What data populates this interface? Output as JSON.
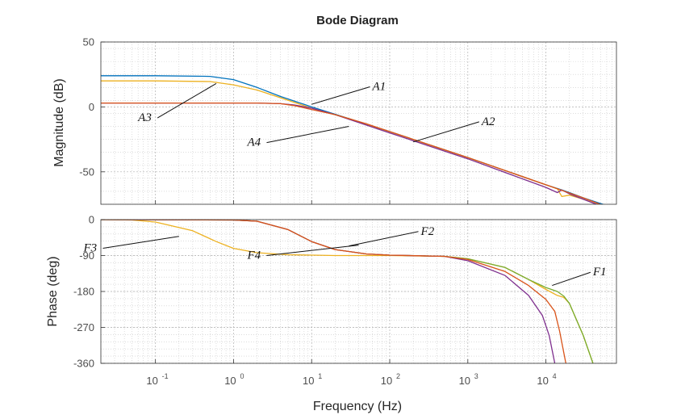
{
  "chart_data": {
    "type": "line",
    "title": "Bode Diagram",
    "xlabel": "Frequency  (Hz)",
    "x_scale": "log",
    "xlim": [
      0.02,
      80000
    ],
    "x_ticks": [
      {
        "base": "10",
        "exp": "-1",
        "value": 0.1
      },
      {
        "base": "10",
        "exp": "0",
        "value": 1
      },
      {
        "base": "10",
        "exp": "1",
        "value": 10
      },
      {
        "base": "10",
        "exp": "2",
        "value": 100
      },
      {
        "base": "10",
        "exp": "3",
        "value": 1000
      },
      {
        "base": "10",
        "exp": "4",
        "value": 10000
      }
    ],
    "grid": true,
    "colors": {
      "blue": "#0072BD",
      "orange": "#D95319",
      "yellow": "#EDB120",
      "purple": "#7E2F8E",
      "green": "#77AC30"
    },
    "panels": [
      {
        "ylabel": "Magnitude (dB)",
        "ylim": [
          -75,
          50
        ],
        "y_ticks": [
          {
            "label": "50",
            "value": 50
          },
          {
            "label": "0",
            "value": 0
          },
          {
            "label": "-50",
            "value": -50
          }
        ],
        "series": [
          {
            "color": "blue",
            "points": [
              [
                0.02,
                24
              ],
              [
                0.1,
                24
              ],
              [
                0.5,
                23.5
              ],
              [
                1,
                21
              ],
              [
                2,
                15
              ],
              [
                4,
                8
              ],
              [
                10,
                0
              ],
              [
                30,
                -9
              ],
              [
                100,
                -19
              ],
              [
                1000,
                -39
              ],
              [
                10000,
                -60
              ],
              [
                16000,
                -64
              ],
              [
                20000,
                -66
              ],
              [
                30000,
                -70
              ],
              [
                60000,
                -76
              ]
            ]
          },
          {
            "color": "yellow",
            "points": [
              [
                0.02,
                20
              ],
              [
                0.1,
                20
              ],
              [
                0.5,
                19.5
              ],
              [
                1,
                17
              ],
              [
                2,
                13
              ],
              [
                4,
                7
              ],
              [
                10,
                -1
              ],
              [
                30,
                -9
              ],
              [
                100,
                -19
              ],
              [
                1000,
                -39
              ],
              [
                10000,
                -60
              ],
              [
                14000,
                -63
              ],
              [
                16000,
                -69
              ],
              [
                20000,
                -68
              ],
              [
                30000,
                -71
              ],
              [
                60000,
                -78
              ]
            ]
          },
          {
            "color": "purple",
            "points": [
              [
                0.02,
                3
              ],
              [
                1,
                3
              ],
              [
                2,
                3
              ],
              [
                4,
                2.5
              ],
              [
                6,
                1.5
              ],
              [
                10,
                -1
              ],
              [
                20,
                -6
              ],
              [
                50,
                -14
              ],
              [
                100,
                -20
              ],
              [
                1000,
                -40
              ],
              [
                10000,
                -62
              ],
              [
                14000,
                -66
              ],
              [
                16000,
                -64
              ],
              [
                20000,
                -67
              ],
              [
                40000,
                -74
              ],
              [
                60000,
                -78
              ]
            ]
          },
          {
            "color": "orange",
            "points": [
              [
                0.02,
                3
              ],
              [
                1,
                3
              ],
              [
                2,
                3
              ],
              [
                4,
                2.5
              ],
              [
                6,
                1
              ],
              [
                10,
                -2
              ],
              [
                20,
                -6
              ],
              [
                50,
                -13
              ],
              [
                100,
                -19
              ],
              [
                1000,
                -39
              ],
              [
                10000,
                -60
              ],
              [
                30000,
                -70
              ],
              [
                60000,
                -77
              ]
            ]
          }
        ],
        "annotations": [
          {
            "label": "A1",
            "text_at": [
              60,
              13
            ],
            "points_to": [
              10,
              2
            ]
          },
          {
            "label": "A2",
            "text_at": [
              1500,
              -14
            ],
            "points_to": [
              200,
              -27
            ]
          },
          {
            "label": "A3",
            "text_at": [
              0.06,
              -11
            ],
            "points_to": [
              0.6,
              18
            ]
          },
          {
            "label": "A4",
            "text_at": [
              1.5,
              -30
            ],
            "points_to": [
              30,
              -15
            ]
          }
        ]
      },
      {
        "ylabel": "Phase (deg)",
        "ylim": [
          -360,
          0
        ],
        "y_ticks": [
          {
            "label": "0",
            "value": 0
          },
          {
            "label": "-90",
            "value": -90
          },
          {
            "label": "-180",
            "value": -180
          },
          {
            "label": "-270",
            "value": -270
          },
          {
            "label": "-360",
            "value": -360
          }
        ],
        "series": [
          {
            "color": "yellow",
            "points": [
              [
                0.02,
                0
              ],
              [
                0.05,
                -1
              ],
              [
                0.1,
                -6
              ],
              [
                0.3,
                -28
              ],
              [
                0.6,
                -55
              ],
              [
                1,
                -72
              ],
              [
                2,
                -83
              ],
              [
                5,
                -88
              ],
              [
                20,
                -90
              ],
              [
                100,
                -90
              ],
              [
                500,
                -92
              ],
              [
                1000,
                -98
              ],
              [
                3000,
                -120
              ],
              [
                6000,
                -150
              ],
              [
                10000,
                -175
              ],
              [
                14000,
                -190
              ],
              [
                17000,
                -195
              ],
              [
                20000,
                -210
              ],
              [
                30000,
                -290
              ],
              [
                40000,
                -360
              ]
            ]
          },
          {
            "color": "green",
            "points": [
              [
                0.02,
                0
              ],
              [
                1,
                -1
              ],
              [
                2,
                -4
              ],
              [
                5,
                -25
              ],
              [
                10,
                -55
              ],
              [
                20,
                -75
              ],
              [
                50,
                -86
              ],
              [
                100,
                -89
              ],
              [
                500,
                -92
              ],
              [
                1000,
                -98
              ],
              [
                3000,
                -120
              ],
              [
                6000,
                -150
              ],
              [
                10000,
                -170
              ],
              [
                14000,
                -180
              ],
              [
                17000,
                -192
              ],
              [
                20000,
                -210
              ],
              [
                30000,
                -290
              ],
              [
                40000,
                -360
              ]
            ]
          },
          {
            "color": "purple",
            "points": [
              [
                0.02,
                0
              ],
              [
                1,
                -1
              ],
              [
                2,
                -4
              ],
              [
                5,
                -25
              ],
              [
                10,
                -55
              ],
              [
                20,
                -75
              ],
              [
                50,
                -86
              ],
              [
                100,
                -89
              ],
              [
                500,
                -92
              ],
              [
                1000,
                -103
              ],
              [
                3000,
                -140
              ],
              [
                6000,
                -190
              ],
              [
                9000,
                -240
              ],
              [
                11000,
                -290
              ],
              [
                13000,
                -360
              ]
            ]
          },
          {
            "color": "orange",
            "points": [
              [
                0.02,
                0
              ],
              [
                1,
                -1
              ],
              [
                2,
                -4
              ],
              [
                5,
                -25
              ],
              [
                10,
                -55
              ],
              [
                20,
                -75
              ],
              [
                50,
                -86
              ],
              [
                100,
                -89
              ],
              [
                500,
                -92
              ],
              [
                1000,
                -100
              ],
              [
                3000,
                -130
              ],
              [
                6000,
                -165
              ],
              [
                10000,
                -200
              ],
              [
                13000,
                -230
              ],
              [
                15000,
                -280
              ],
              [
                18000,
                -360
              ]
            ]
          }
        ],
        "annotations": [
          {
            "label": "F1",
            "text_at": [
              40000,
              -140
            ],
            "points_to": [
              12000,
              -165
            ]
          },
          {
            "label": "F2",
            "text_at": [
              250,
              -38
            ],
            "points_to": [
              30,
              -66
            ]
          },
          {
            "label": "F3",
            "text_at": [
              0.012,
              -80
            ],
            "points_to": [
              0.2,
              -42
            ]
          },
          {
            "label": "F4",
            "text_at": [
              1.5,
              -98
            ],
            "points_to": [
              40,
              -64
            ]
          }
        ]
      }
    ]
  }
}
